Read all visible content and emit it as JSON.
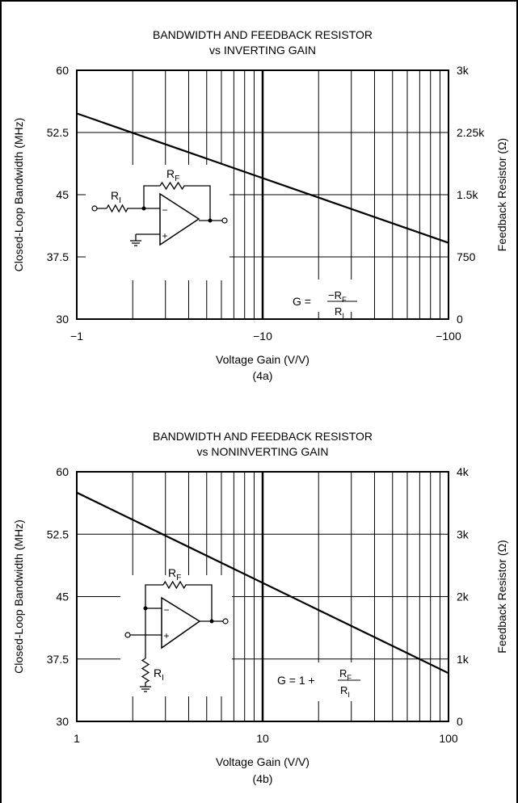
{
  "chart_data": [
    {
      "type": "line",
      "title": "BANDWIDTH AND FEEDBACK RESISTOR",
      "subtitle": "vs INVERTING GAIN",
      "xlabel": "Voltage Gain (V/V)",
      "caption": "(4a)",
      "ylabel": "Closed-Loop Bandwidth (MHz)",
      "y2label": "Feedback Resistor (Ω)",
      "x_scale": "log",
      "xlim": [
        1,
        100
      ],
      "x_ticks": [
        "−1",
        "−10",
        "−100"
      ],
      "ylim": [
        30,
        60
      ],
      "y_ticks": [
        "60",
        "52.5",
        "45",
        "37.5",
        "30"
      ],
      "y2lim": [
        0,
        3000
      ],
      "y2_ticks": [
        "3k",
        "2.25k",
        "1.5k",
        "750",
        "0"
      ],
      "grid": true,
      "series": [
        {
          "x": [
            -1,
            -100
          ],
          "y": [
            54.8,
            39.2
          ]
        }
      ],
      "annotation": {
        "lhs": "G =",
        "num": "−R",
        "num_sub": "F",
        "den": "R",
        "den_sub": "I"
      },
      "schematic": {
        "rf_main": "R",
        "rf_sub": "F",
        "ri_main": "R",
        "ri_sub": "I",
        "minus": "−",
        "plus": "+"
      }
    },
    {
      "type": "line",
      "title": "BANDWIDTH AND FEEDBACK RESISTOR",
      "subtitle": "vs NONINVERTING GAIN",
      "xlabel": "Voltage Gain (V/V)",
      "caption": "(4b)",
      "ylabel": "Closed-Loop Bandwidth (MHz)",
      "y2label": "Feedback Resistor (Ω)",
      "x_scale": "log",
      "xlim": [
        1,
        100
      ],
      "x_ticks": [
        "1",
        "10",
        "100"
      ],
      "ylim": [
        30,
        60
      ],
      "y_ticks": [
        "60",
        "52.5",
        "45",
        "37.5",
        "30"
      ],
      "y2lim": [
        0,
        4000
      ],
      "y2_ticks": [
        "4k",
        "3k",
        "2k",
        "1k",
        "0"
      ],
      "grid": true,
      "series": [
        {
          "x": [
            1,
            100
          ],
          "y": [
            57.5,
            35.8
          ]
        }
      ],
      "annotation": {
        "lhs": "G = 1 +",
        "num": "R",
        "num_sub": "F",
        "den": "R",
        "den_sub": "I"
      },
      "schematic": {
        "rf_main": "R",
        "rf_sub": "F",
        "ri_main": "R",
        "ri_sub": "I",
        "minus": "−",
        "plus": "+"
      }
    }
  ]
}
